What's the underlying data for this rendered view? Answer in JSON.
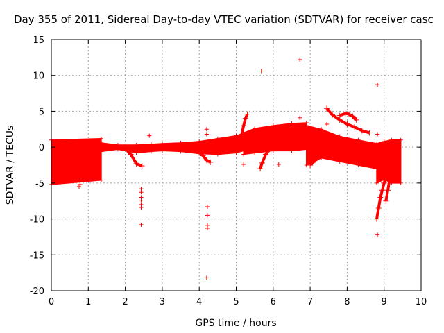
{
  "chart_data": {
    "type": "scatter",
    "title": "Day 355 of 2011, Sidereal Day-to-day VTEC variation (SDTVAR) for receiver casc",
    "xlabel": "GPS time / hours",
    "ylabel": "SDTVAR / TECUs",
    "xlim": [
      0,
      10
    ],
    "ylim": [
      -20,
      15
    ],
    "xticks": [
      0,
      1,
      2,
      3,
      4,
      5,
      6,
      7,
      8,
      9,
      10
    ],
    "yticks": [
      -20,
      -15,
      -10,
      -5,
      0,
      5,
      10,
      15
    ],
    "grid": true,
    "marker": "+",
    "color": "#ff0000",
    "dense_bands": [
      {
        "name": "block-0-1.3h",
        "x": [
          0.0,
          1.35
        ],
        "y_low": [
          -5.2,
          -4.6
        ],
        "y_high": [
          1.0,
          1.2
        ]
      },
      {
        "name": "band-1.3-3.0h",
        "x": [
          1.35,
          1.8,
          2.3,
          2.7,
          3.0
        ],
        "y_low": [
          -0.6,
          -0.3,
          -0.8,
          -0.6,
          -0.5
        ],
        "y_high": [
          0.6,
          0.3,
          0.3,
          0.4,
          0.5
        ]
      },
      {
        "name": "band-3.0-5.2h",
        "x": [
          3.0,
          3.5,
          4.0,
          4.5,
          5.0,
          5.2
        ],
        "y_low": [
          -0.5,
          -0.6,
          -0.9,
          -1.0,
          -0.8,
          -0.5
        ],
        "y_high": [
          0.5,
          0.6,
          0.8,
          1.2,
          1.6,
          1.9
        ]
      },
      {
        "name": "band-5.2-6.9h",
        "x": [
          5.2,
          5.5,
          6.0,
          6.5,
          6.9
        ],
        "y_low": [
          -1.0,
          -0.8,
          -0.5,
          -0.5,
          -0.3
        ],
        "y_high": [
          2.0,
          2.6,
          3.0,
          3.3,
          3.4
        ]
      },
      {
        "name": "band-6.9-8.8h",
        "x": [
          6.9,
          7.3,
          7.8,
          8.3,
          8.8
        ],
        "y_low": [
          -2.5,
          -1.5,
          -2.0,
          -2.5,
          -3.0
        ],
        "y_high": [
          3.0,
          2.5,
          1.5,
          1.0,
          0.5
        ]
      },
      {
        "name": "band-8.8-9.45h",
        "x": [
          8.8,
          9.0,
          9.2,
          9.45
        ],
        "y_low": [
          -5.0,
          -4.5,
          -5.0,
          -5.0
        ],
        "y_high": [
          0.5,
          0.8,
          1.0,
          1.0
        ]
      }
    ],
    "tracks": [
      {
        "name": "track-dip-2.4",
        "x": [
          2.0,
          2.15,
          2.3,
          2.45
        ],
        "y": [
          -0.2,
          -1.0,
          -2.3,
          -2.6
        ]
      },
      {
        "name": "track-dip-4.3",
        "x": [
          4.0,
          4.1,
          4.2,
          4.3
        ],
        "y": [
          -0.5,
          -1.2,
          -1.8,
          -2.1
        ]
      },
      {
        "name": "track-rise-5.3",
        "x": [
          5.15,
          5.2,
          5.25,
          5.3
        ],
        "y": [
          1.8,
          3.0,
          4.0,
          4.6
        ]
      },
      {
        "name": "track-drop-5.7",
        "x": [
          5.65,
          5.7,
          5.8,
          5.9,
          6.0
        ],
        "y": [
          -3.0,
          -2.2,
          -1.0,
          -0.3,
          0.2
        ]
      },
      {
        "name": "track-peak-7.5",
        "x": [
          7.45,
          7.6,
          7.8,
          8.0,
          8.2,
          8.4,
          8.6
        ],
        "y": [
          5.4,
          4.5,
          3.8,
          3.2,
          2.8,
          2.3,
          2.0
        ]
      },
      {
        "name": "track-hump-7.9",
        "x": [
          7.8,
          7.95,
          8.05,
          8.15,
          8.25
        ],
        "y": [
          4.4,
          4.7,
          4.6,
          4.3,
          3.8
        ]
      },
      {
        "name": "track-fall-8.8",
        "x": [
          8.8,
          8.85,
          8.9,
          8.95,
          9.0,
          9.05,
          9.1
        ],
        "y": [
          -10.0,
          -8.5,
          -7.0,
          -6.0,
          -5.0,
          -4.0,
          -3.0
        ]
      },
      {
        "name": "track-fall-9.1",
        "x": [
          9.05,
          9.1,
          9.15,
          9.2,
          9.3
        ],
        "y": [
          -7.5,
          -6.0,
          -4.5,
          -3.5,
          -2.0
        ]
      },
      {
        "name": "track-7.3",
        "x": [
          7.0,
          7.15,
          7.3,
          7.5,
          7.7
        ],
        "y": [
          -2.5,
          -1.8,
          -1.2,
          -0.6,
          -0.2
        ]
      }
    ],
    "outliers": [
      {
        "x": 0.75,
        "y": -5.5
      },
      {
        "x": 0.78,
        "y": -5.2
      },
      {
        "x": 2.43,
        "y": -5.8
      },
      {
        "x": 2.43,
        "y": -6.3
      },
      {
        "x": 2.43,
        "y": -7.0
      },
      {
        "x": 2.43,
        "y": -7.4
      },
      {
        "x": 2.43,
        "y": -8.0
      },
      {
        "x": 2.43,
        "y": -8.4
      },
      {
        "x": 2.43,
        "y": -10.8
      },
      {
        "x": 2.65,
        "y": 1.6
      },
      {
        "x": 4.2,
        "y": 2.5
      },
      {
        "x": 4.2,
        "y": 1.8
      },
      {
        "x": 4.22,
        "y": -8.3
      },
      {
        "x": 4.22,
        "y": -9.5
      },
      {
        "x": 4.22,
        "y": -10.9
      },
      {
        "x": 4.22,
        "y": -11.3
      },
      {
        "x": 4.2,
        "y": -18.2
      },
      {
        "x": 5.2,
        "y": -2.4
      },
      {
        "x": 5.68,
        "y": 10.6
      },
      {
        "x": 6.15,
        "y": -2.4
      },
      {
        "x": 6.72,
        "y": 12.2
      },
      {
        "x": 6.72,
        "y": 4.1
      },
      {
        "x": 7.45,
        "y": 3.2
      },
      {
        "x": 8.82,
        "y": 8.7
      },
      {
        "x": 8.82,
        "y": 1.8
      },
      {
        "x": 8.82,
        "y": -12.2
      }
    ]
  }
}
